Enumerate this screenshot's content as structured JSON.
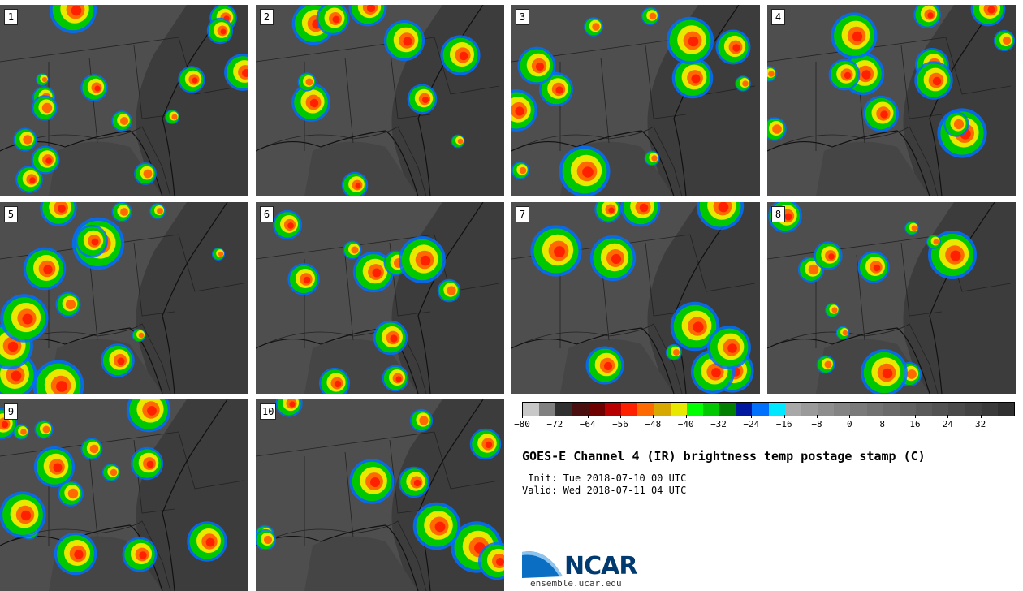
{
  "panels": [
    {
      "label": "1"
    },
    {
      "label": "2"
    },
    {
      "label": "3"
    },
    {
      "label": "4"
    },
    {
      "label": "5"
    },
    {
      "label": "6"
    },
    {
      "label": "7"
    },
    {
      "label": "8"
    },
    {
      "label": "9"
    },
    {
      "label": "10"
    }
  ],
  "colorbar": {
    "colors": [
      "#c8c8c8",
      "#808080",
      "#303030",
      "#4a1010",
      "#6e0000",
      "#b80000",
      "#ff2000",
      "#ff6a00",
      "#d6a800",
      "#e8e800",
      "#00ff00",
      "#00c800",
      "#008000",
      "#0018a0",
      "#0070ff",
      "#00e8ff",
      "#a8a8a8",
      "#9a9a9a",
      "#8e8e8e",
      "#848484",
      "#7a7a7a",
      "#727272",
      "#6a6a6a",
      "#626262",
      "#5a5a5a",
      "#525252",
      "#4a4a4a",
      "#424242",
      "#3a3a3a",
      "#303030"
    ],
    "ticks": [
      "−80",
      "−72",
      "−64",
      "−56",
      "−48",
      "−40",
      "−32",
      "−24",
      "−16",
      "−8",
      "0",
      "8",
      "16",
      "24",
      "32"
    ]
  },
  "title": "GOES-E Channel 4 (IR) brightness temp postage stamp (C)",
  "init": " Init: Tue 2018-07-10 00 UTC",
  "valid": "Valid: Wed 2018-07-11 04 UTC",
  "logo": {
    "text": "NCAR",
    "url": "ensemble.ucar.edu"
  }
}
